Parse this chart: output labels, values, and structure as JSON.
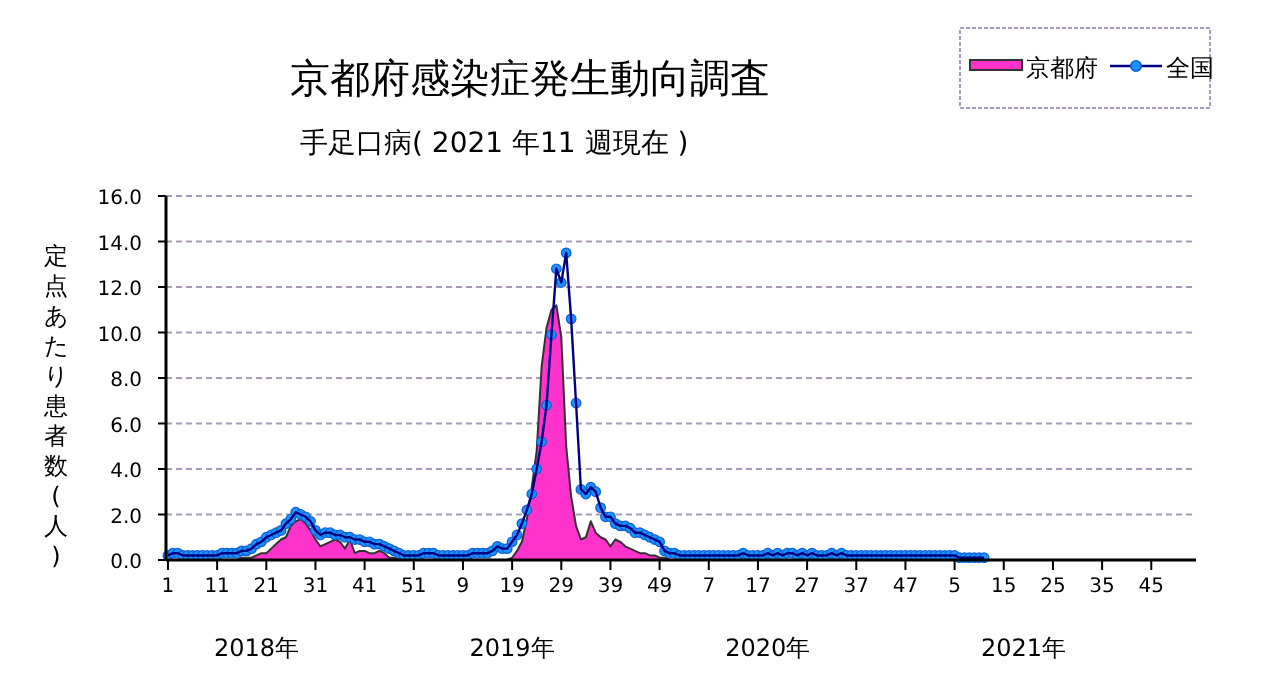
{
  "chart_data": {
    "type": "area",
    "title": "京都府感染症発生動向調査",
    "subtitle": "手足口病( 2021 年11 週現在 )",
    "ylabel": "定点あたり患者数(人)",
    "categories": [
      "1",
      null,
      null,
      null,
      null,
      null,
      null,
      null,
      null,
      null,
      "11",
      null,
      null,
      null,
      null,
      null,
      null,
      null,
      null,
      null,
      "21",
      null,
      null,
      null,
      null,
      null,
      null,
      null,
      null,
      null,
      "31",
      null,
      null,
      null,
      null,
      null,
      null,
      null,
      null,
      null,
      "41",
      null,
      null,
      null,
      null,
      null,
      null,
      null,
      null,
      null,
      "51",
      null,
      null,
      null,
      null,
      null,
      null,
      null,
      null,
      null,
      "9",
      null,
      null,
      null,
      null,
      null,
      null,
      null,
      null,
      null,
      "19",
      null,
      null,
      null,
      null,
      null,
      null,
      null,
      null,
      null,
      "29",
      null,
      null,
      null,
      null,
      null,
      null,
      null,
      null,
      null,
      "39",
      null,
      null,
      null,
      null,
      null,
      null,
      null,
      null,
      null,
      "49",
      null,
      null,
      null,
      null,
      null,
      null,
      null,
      null,
      null,
      "7",
      null,
      null,
      null,
      null,
      null,
      null,
      null,
      null,
      null,
      "17",
      null,
      null,
      null,
      null,
      null,
      null,
      null,
      null,
      null,
      "27",
      null,
      null,
      null,
      null,
      null,
      null,
      null,
      null,
      null,
      "37",
      null,
      null,
      null,
      null,
      null,
      null,
      null,
      null,
      null,
      "47",
      null,
      null,
      null,
      null,
      null,
      null,
      null,
      null,
      null,
      "5",
      null,
      null,
      null,
      null,
      null,
      null,
      null,
      null,
      null,
      "15",
      null,
      null,
      null,
      null,
      null,
      null,
      null,
      null,
      null,
      "25",
      null,
      null,
      null,
      null,
      null,
      null,
      null,
      null,
      null,
      "35",
      null,
      null,
      null,
      null,
      null,
      null,
      null,
      null,
      null,
      "45",
      null,
      null,
      null,
      null,
      null,
      null,
      null
    ],
    "series": [
      {
        "name": "京都府",
        "color": "#ff33cc",
        "values": [
          0,
          0,
          0,
          0,
          0,
          0,
          0,
          0,
          0,
          0,
          0,
          0,
          0,
          0,
          0,
          0.1,
          0.1,
          0.1,
          0.2,
          0.3,
          0.3,
          0.5,
          0.7,
          0.9,
          1.0,
          1.5,
          1.7,
          1.8,
          1.6,
          1.3,
          0.9,
          0.6,
          0.7,
          0.8,
          0.9,
          0.8,
          0.5,
          0.9,
          0.3,
          0.4,
          0.4,
          0.3,
          0.3,
          0.4,
          0.3,
          0.1,
          0.1,
          0,
          0,
          0,
          0,
          0,
          0,
          0,
          0,
          0,
          0,
          0,
          0,
          0,
          0,
          0,
          0,
          0,
          0,
          0,
          0,
          0,
          0,
          0,
          0.1,
          0.4,
          0.8,
          1.8,
          3.2,
          4.8,
          8.5,
          10.2,
          11.0,
          11.2,
          9.8,
          5.0,
          2.8,
          1.5,
          0.9,
          1.0,
          1.7,
          1.2,
          1.0,
          0.9,
          0.6,
          0.9,
          0.8,
          0.6,
          0.5,
          0.4,
          0.3,
          0.3,
          0.2,
          0.2,
          0.1,
          0.1,
          0,
          0,
          0,
          0,
          0,
          0,
          0,
          0,
          0,
          0,
          0,
          0,
          0,
          0,
          0,
          0,
          0,
          0,
          0,
          0,
          0,
          0,
          0,
          0,
          0,
          0,
          0,
          0,
          0,
          0,
          0,
          0,
          0,
          0,
          0,
          0,
          0,
          0,
          0,
          0,
          0,
          0,
          0,
          0,
          0,
          0,
          0,
          0,
          0,
          0,
          0,
          0,
          0,
          0,
          0,
          0,
          0,
          0,
          0,
          0,
          0,
          0,
          0,
          0,
          0,
          null,
          null,
          null,
          null,
          null,
          null,
          null,
          null,
          null,
          null,
          null,
          null,
          null,
          null,
          null,
          null,
          null,
          null,
          null,
          null,
          null,
          null,
          null,
          null,
          null,
          null,
          null,
          null,
          null,
          null,
          null,
          null,
          null,
          null,
          null,
          null,
          null,
          null,
          null,
          null,
          null
        ]
      },
      {
        "name": "全国",
        "type": "line",
        "marker": "circle",
        "color": "#1e90ff",
        "values": [
          0.2,
          0.3,
          0.3,
          0.2,
          0.2,
          0.2,
          0.2,
          0.2,
          0.2,
          0.2,
          0.2,
          0.3,
          0.3,
          0.3,
          0.3,
          0.4,
          0.4,
          0.5,
          0.7,
          0.8,
          1.0,
          1.1,
          1.2,
          1.3,
          1.6,
          1.8,
          2.1,
          2.0,
          1.9,
          1.7,
          1.3,
          1.1,
          1.2,
          1.2,
          1.1,
          1.1,
          1.0,
          1.0,
          0.9,
          0.9,
          0.8,
          0.8,
          0.7,
          0.7,
          0.6,
          0.5,
          0.4,
          0.3,
          0.2,
          0.2,
          0.2,
          0.2,
          0.3,
          0.3,
          0.3,
          0.2,
          0.2,
          0.2,
          0.2,
          0.2,
          0.2,
          0.2,
          0.3,
          0.3,
          0.3,
          0.3,
          0.4,
          0.6,
          0.5,
          0.5,
          0.8,
          1.1,
          1.6,
          2.2,
          2.9,
          4.0,
          5.2,
          6.8,
          9.9,
          12.8,
          12.2,
          13.5,
          10.6,
          6.9,
          3.1,
          2.9,
          3.2,
          3.0,
          2.3,
          1.9,
          1.9,
          1.6,
          1.5,
          1.5,
          1.4,
          1.2,
          1.2,
          1.1,
          1.0,
          0.9,
          0.8,
          0.4,
          0.3,
          0.3,
          0.2,
          0.2,
          0.2,
          0.2,
          0.2,
          0.2,
          0.2,
          0.2,
          0.2,
          0.2,
          0.2,
          0.2,
          0.2,
          0.3,
          0.2,
          0.2,
          0.2,
          0.2,
          0.3,
          0.2,
          0.3,
          0.2,
          0.3,
          0.3,
          0.2,
          0.3,
          0.2,
          0.3,
          0.2,
          0.2,
          0.2,
          0.3,
          0.2,
          0.3,
          0.2,
          0.2,
          0.2,
          0.2,
          0.2,
          0.2,
          0.2,
          0.2,
          0.2,
          0.2,
          0.2,
          0.2,
          0.2,
          0.2,
          0.2,
          0.2,
          0.2,
          0.2,
          0.2,
          0.2,
          0.2,
          0.2,
          0.2,
          0.1,
          0.1,
          0.1,
          0.1,
          0.1,
          0.1,
          null,
          null,
          null,
          null,
          null,
          null,
          null,
          null,
          null,
          null,
          null,
          null,
          null,
          null,
          null,
          null,
          null,
          null,
          null,
          null,
          null,
          null,
          null,
          null,
          null,
          null,
          null,
          null,
          null,
          null,
          null,
          null,
          null,
          null,
          null,
          null,
          null,
          null,
          null,
          null,
          null
        ]
      }
    ],
    "ylim": [
      0,
      16
    ],
    "yticks": [
      {
        "value": 0,
        "label": "0.0"
      },
      {
        "value": 2,
        "label": "2.0"
      },
      {
        "value": 4,
        "label": "4.0"
      },
      {
        "value": 6,
        "label": "6.0"
      },
      {
        "value": 8,
        "label": "8.0"
      },
      {
        "value": 10,
        "label": "10.0"
      },
      {
        "value": 12,
        "label": "12.0"
      },
      {
        "value": 14,
        "label": "14.0"
      },
      {
        "value": 16,
        "label": "16.0"
      }
    ],
    "grid": "y",
    "legend": "top right",
    "annotations": [
      "2018年",
      "2019年",
      "2020年",
      "2021年"
    ]
  }
}
